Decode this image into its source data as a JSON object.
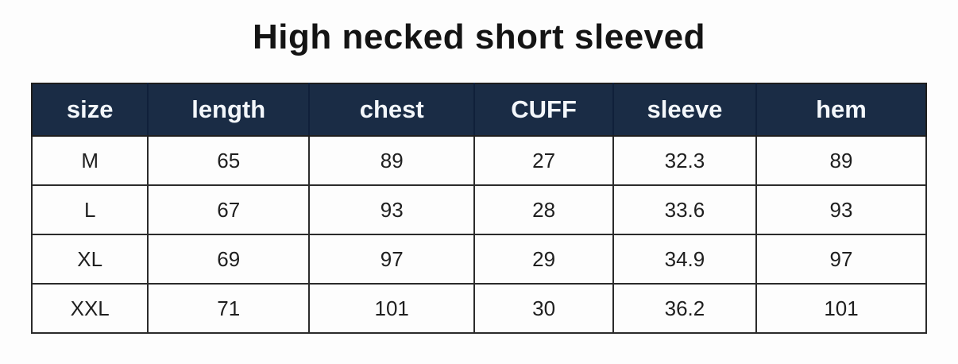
{
  "page": {
    "title": "High necked short sleeved"
  },
  "size_chart": {
    "columns": [
      "size",
      "length",
      "chest",
      "CUFF",
      "sleeve",
      "hem"
    ],
    "rows": [
      [
        "M",
        "65",
        "89",
        "27",
        "32.3",
        "89"
      ],
      [
        "L",
        "67",
        "93",
        "28",
        "33.6",
        "93"
      ],
      [
        "XL",
        "69",
        "97",
        "29",
        "34.9",
        "97"
      ],
      [
        "XXL",
        "71",
        "101",
        "30",
        "36.2",
        "101"
      ]
    ]
  },
  "chart_data": {
    "type": "table",
    "title": "High necked short sleeved",
    "columns": [
      "size",
      "length",
      "chest",
      "CUFF",
      "sleeve",
      "hem"
    ],
    "rows": [
      {
        "size": "M",
        "length": 65,
        "chest": 89,
        "CUFF": 27,
        "sleeve": 32.3,
        "hem": 89
      },
      {
        "size": "L",
        "length": 67,
        "chest": 93,
        "CUFF": 28,
        "sleeve": 33.6,
        "hem": 93
      },
      {
        "size": "XL",
        "length": 69,
        "chest": 97,
        "CUFF": 29,
        "sleeve": 34.9,
        "hem": 97
      },
      {
        "size": "XXL",
        "length": 71,
        "chest": 101,
        "CUFF": 30,
        "sleeve": 36.2,
        "hem": 101
      }
    ]
  },
  "colors": {
    "header_background": "#1a2c45",
    "header_text": "#f3f7fb",
    "grid_border": "#2b2b2b",
    "cell_text": "#1f1f1f",
    "page_background": "#fdfdfd",
    "title_text": "#141414"
  }
}
